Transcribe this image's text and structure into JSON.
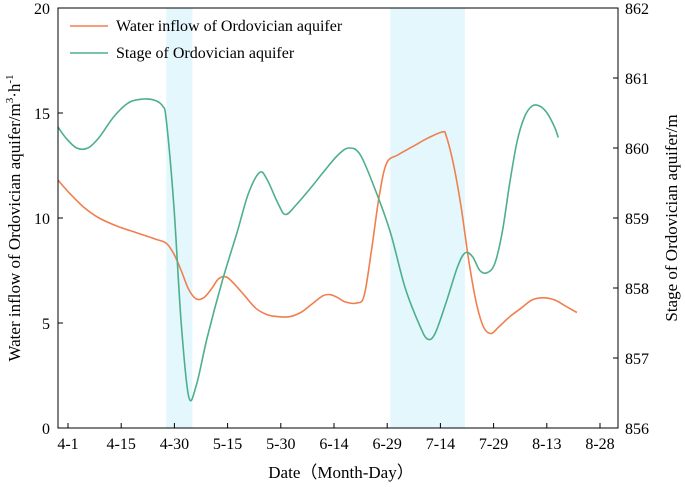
{
  "chart_data": {
    "type": "line",
    "xlabel": "Date（Month-Day）",
    "ylabel_left": "Water inflow of Ordovician aquifer/m",
    "ylabel_left_sup1": "3",
    "ylabel_left_mid": "·h",
    "ylabel_left_sup2": "-1",
    "ylabel_right": "Stage of Ordovician aquifer/m",
    "x_ticks": [
      "4-1",
      "4-15",
      "4-30",
      "5-15",
      "5-30",
      "6-14",
      "6-29",
      "7-14",
      "7-29",
      "8-13",
      "8-28"
    ],
    "x_range": [
      0,
      150
    ],
    "y_left_range": [
      0,
      20
    ],
    "y_left_ticks": [
      "0",
      "5",
      "10",
      "15",
      "20"
    ],
    "y_right_range": [
      856,
      862
    ],
    "y_right_ticks": [
      "856",
      "857",
      "858",
      "859",
      "860",
      "861",
      "862"
    ],
    "shaded_regions": [
      [
        29,
        36
      ],
      [
        89,
        109
      ]
    ],
    "series": [
      {
        "name": "Water inflow of Ordovician aquifer",
        "axis": "left",
        "color": "#f07f4f",
        "points": [
          [
            0,
            11.8
          ],
          [
            3,
            11.2
          ],
          [
            7,
            10.5
          ],
          [
            11,
            10.0
          ],
          [
            16,
            9.6
          ],
          [
            21,
            9.3
          ],
          [
            26,
            9.0
          ],
          [
            29,
            8.8
          ],
          [
            31,
            8.3
          ],
          [
            33,
            7.5
          ],
          [
            35,
            6.6
          ],
          [
            37,
            6.15
          ],
          [
            39,
            6.2
          ],
          [
            41,
            6.6
          ],
          [
            43,
            7.1
          ],
          [
            45,
            7.2
          ],
          [
            47,
            6.9
          ],
          [
            50,
            6.3
          ],
          [
            53,
            5.7
          ],
          [
            56,
            5.4
          ],
          [
            59,
            5.3
          ],
          [
            62,
            5.3
          ],
          [
            65,
            5.5
          ],
          [
            68,
            5.9
          ],
          [
            71,
            6.3
          ],
          [
            73,
            6.35
          ],
          [
            75,
            6.2
          ],
          [
            77,
            6.0
          ],
          [
            80,
            5.95
          ],
          [
            82,
            6.3
          ],
          [
            84,
            8.5
          ],
          [
            86,
            11.0
          ],
          [
            88,
            12.6
          ],
          [
            91,
            13.0
          ],
          [
            95,
            13.4
          ],
          [
            99,
            13.8
          ],
          [
            103,
            14.1
          ],
          [
            104,
            13.9
          ],
          [
            106,
            12.5
          ],
          [
            108,
            10.5
          ],
          [
            110,
            8.0
          ],
          [
            112,
            6.0
          ],
          [
            114,
            4.8
          ],
          [
            116,
            4.5
          ],
          [
            118,
            4.8
          ],
          [
            121,
            5.3
          ],
          [
            124,
            5.7
          ],
          [
            127,
            6.1
          ],
          [
            130,
            6.2
          ],
          [
            133,
            6.1
          ],
          [
            136,
            5.8
          ],
          [
            139,
            5.5
          ]
        ]
      },
      {
        "name": "Stage of Ordovician aquifer",
        "axis": "right",
        "color": "#4db08a",
        "points": [
          [
            0,
            860.3
          ],
          [
            2,
            860.15
          ],
          [
            5,
            860.0
          ],
          [
            8,
            860.0
          ],
          [
            11,
            860.15
          ],
          [
            15,
            860.45
          ],
          [
            19,
            860.65
          ],
          [
            23,
            860.7
          ],
          [
            26,
            860.68
          ],
          [
            28,
            860.6
          ],
          [
            29,
            860.4
          ],
          [
            31,
            859.2
          ],
          [
            33,
            857.5
          ],
          [
            35,
            856.45
          ],
          [
            37,
            856.6
          ],
          [
            40,
            857.3
          ],
          [
            44,
            858.1
          ],
          [
            48,
            858.8
          ],
          [
            51,
            859.35
          ],
          [
            54,
            859.65
          ],
          [
            56,
            859.55
          ],
          [
            59,
            859.2
          ],
          [
            61,
            859.05
          ],
          [
            64,
            859.2
          ],
          [
            68,
            859.45
          ],
          [
            71,
            859.65
          ],
          [
            75,
            859.9
          ],
          [
            78,
            860.0
          ],
          [
            81,
            859.9
          ],
          [
            85,
            859.4
          ],
          [
            89,
            858.8
          ],
          [
            93,
            858.0
          ],
          [
            97,
            857.45
          ],
          [
            99,
            857.27
          ],
          [
            101,
            857.35
          ],
          [
            104,
            857.8
          ],
          [
            107,
            858.3
          ],
          [
            109,
            858.5
          ],
          [
            111,
            858.45
          ],
          [
            113,
            858.25
          ],
          [
            115,
            858.22
          ],
          [
            117,
            858.35
          ],
          [
            119,
            858.8
          ],
          [
            121,
            859.5
          ],
          [
            123,
            860.1
          ],
          [
            125,
            860.45
          ],
          [
            127,
            860.6
          ],
          [
            129,
            860.6
          ],
          [
            131,
            860.5
          ],
          [
            133,
            860.3
          ],
          [
            134,
            860.15
          ]
        ]
      }
    ]
  }
}
